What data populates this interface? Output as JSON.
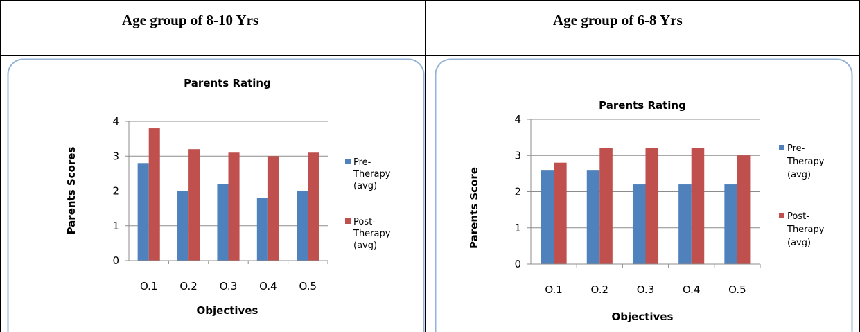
{
  "table": {
    "headers": [
      "Age group of 8-10 Yrs",
      "Age group of 6-8 Yrs"
    ]
  },
  "colors": {
    "pre": "#4F81BD",
    "post": "#C0504D",
    "frame": "#95B3D7",
    "grid": "#8C8C8C"
  },
  "chart_data": [
    {
      "type": "bar",
      "title": "Parents Rating",
      "xlabel": "Objectives",
      "ylabel": "Parents Scores",
      "categories": [
        "O.1",
        "O.2",
        "O.3",
        "O.4",
        "O.5"
      ],
      "ylim": [
        0,
        4
      ],
      "yticks": [
        "0",
        "1",
        "2",
        "3",
        "4"
      ],
      "grid": true,
      "legend_position": "right",
      "series": [
        {
          "name": "Pre-Therapy (avg)",
          "legend_lines": [
            "Pre-",
            "Therapy",
            "(avg)"
          ],
          "values": [
            2.8,
            2.0,
            2.2,
            1.8,
            2.0
          ]
        },
        {
          "name": "Post-Therapy (avg)",
          "legend_lines": [
            "Post-",
            "Therapy",
            "(avg)"
          ],
          "values": [
            3.8,
            3.2,
            3.1,
            3.0,
            3.1
          ]
        }
      ]
    },
    {
      "type": "bar",
      "title": "Parents Rating",
      "xlabel": "Objectives",
      "ylabel": "Parents Score",
      "categories": [
        "O.1",
        "O.2",
        "O.3",
        "O.4",
        "O.5"
      ],
      "ylim": [
        0,
        4
      ],
      "yticks": [
        "0",
        "1",
        "2",
        "3",
        "4"
      ],
      "grid": true,
      "legend_position": "right",
      "series": [
        {
          "name": "Pre-Therapy (avg)",
          "legend_lines": [
            "Pre-",
            "Therapy",
            "(avg)"
          ],
          "values": [
            2.6,
            2.6,
            2.2,
            2.2,
            2.2
          ]
        },
        {
          "name": "Post-Therapy (avg)",
          "legend_lines": [
            "Post-",
            "Therapy",
            "(avg)"
          ],
          "values": [
            2.8,
            3.2,
            3.2,
            3.2,
            3.0
          ]
        }
      ]
    }
  ]
}
